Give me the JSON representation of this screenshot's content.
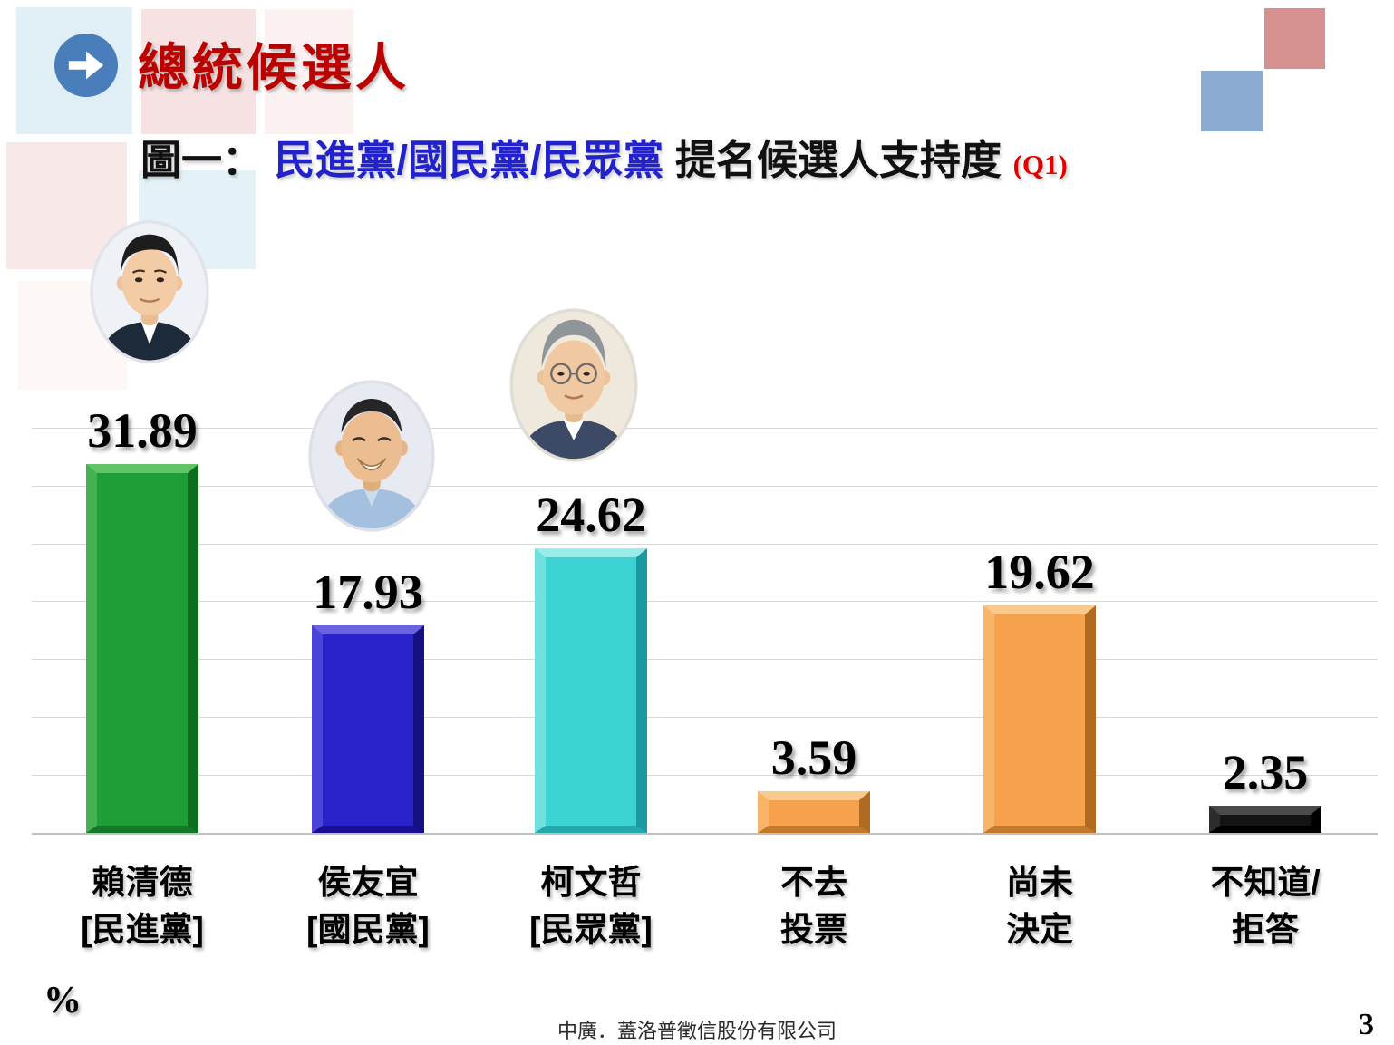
{
  "page": {
    "title": "總統候選人",
    "subtitle_prefix": "圖一：",
    "subtitle_parties": "民進黨/國民黨/民眾黨",
    "subtitle_rest": " 提名候選人支持度 ",
    "subtitle_question": "(Q1)",
    "unit_label": "%",
    "footer": "中廣．蓋洛普徵信股份有限公司",
    "page_number": "3",
    "title_color": "#bb0000",
    "subtitle_party_color": "#2222cc",
    "question_color": "#e00000",
    "arrow_icon_color": "#4a7ebb"
  },
  "icons": {
    "header_arrow": "arrow-right-icon"
  },
  "portraits": [
    {
      "name": "賴清德"
    },
    {
      "name": "侯友宜"
    },
    {
      "name": "柯文哲"
    }
  ],
  "chart_data": {
    "type": "bar",
    "title": "圖一：民進黨/國民黨/民眾黨 提名候選人支持度 (Q1)",
    "categories": [
      "賴清德 [民進黨]",
      "侯友宜 [國民黨]",
      "柯文哲 [民眾黨]",
      "不去投票",
      "尚未決定",
      "不知道/拒答"
    ],
    "categories_lines": [
      [
        "賴清德",
        "[民進黨]"
      ],
      [
        "侯友宜",
        "[國民黨]"
      ],
      [
        "柯文哲",
        "[民眾黨]"
      ],
      [
        "不去",
        "投票"
      ],
      [
        "尚未",
        "決定"
      ],
      [
        "不知道/",
        "拒答"
      ]
    ],
    "values": [
      31.89,
      17.93,
      24.62,
      3.59,
      19.62,
      2.35
    ],
    "value_labels": [
      "31.89",
      "17.93",
      "24.62",
      "3.59",
      "19.62",
      "2.35"
    ],
    "bar_colors": [
      "#1f9e38",
      "#2a23cc",
      "#3ed3d3",
      "#f6a24c",
      "#f6a24c",
      "#141414"
    ],
    "xlabel": "",
    "ylabel": "%",
    "ylim": [
      0,
      35
    ],
    "gridline_step": 5,
    "grid": true,
    "legend": "none"
  }
}
